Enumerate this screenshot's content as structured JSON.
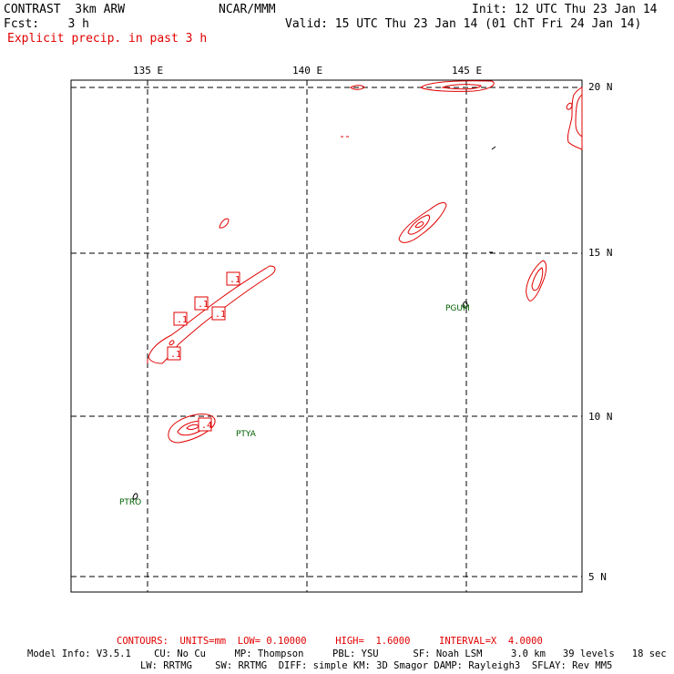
{
  "header": {
    "model": "CONTRAST  3km ARW",
    "org": "NCAR/MMM",
    "init": "Init: 12 UTC Thu 23 Jan 14",
    "fcst": "Fcst:    3 h",
    "valid": "Valid: 15 UTC Thu 23 Jan 14 (01 ChT Fri 24 Jan 14)",
    "field": "Explicit precip. in past 3 h"
  },
  "axes": {
    "lon_labels": [
      "135 E",
      "140 E",
      "145 E"
    ],
    "lat_labels": [
      "20 N",
      "15 N",
      "10 N",
      "5 N"
    ]
  },
  "stations": [
    "PGUM",
    "PTYA",
    "PTRO"
  ],
  "contour_labels": [
    ".1",
    ".1",
    ".1",
    ".1",
    ".1",
    ".1",
    ".4"
  ],
  "footer": {
    "contours": "CONTOURS:  UNITS=mm  LOW= 0.10000     HIGH=  1.6000     INTERVAL=X  4.0000",
    "info1": "Model Info: V3.5.1    CU: No Cu     MP: Thompson     PBL: YSU      SF: Noah LSM     3.0 km   39 levels   18 sec",
    "info2": "LW: RRTMG    SW: RRTMG  DIFF: simple KM: 3D Smagor DAMP: Rayleigh3  SFLAY: Rev MM5"
  },
  "colors": {
    "precip": "#e00000",
    "station": "#006000",
    "grid": "#000000"
  }
}
